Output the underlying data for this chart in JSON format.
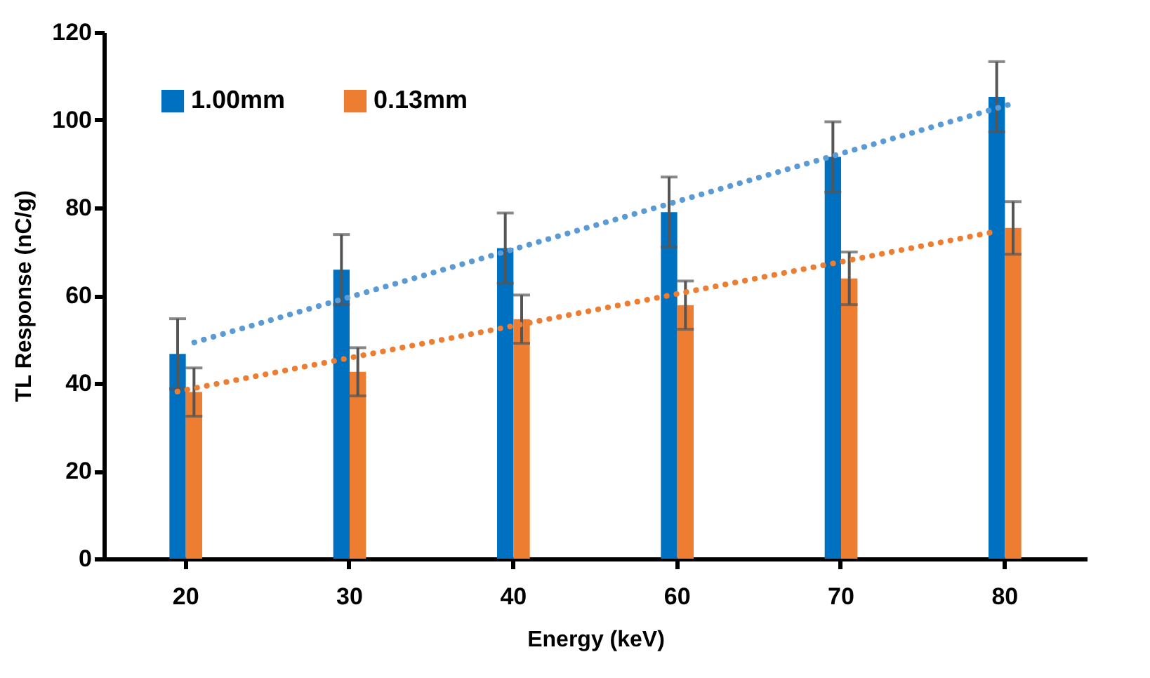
{
  "chart_data": {
    "type": "bar",
    "xlabel": "Energy (keV)",
    "ylabel": "TL Response (nC/g)",
    "categories": [
      "20",
      "30",
      "40",
      "60",
      "70",
      "80"
    ],
    "series": [
      {
        "name": "1.00mm",
        "color": "#0070c0",
        "values": [
          46.7,
          65.9,
          70.8,
          79,
          91.6,
          105.3
        ],
        "errors": [
          8,
          8,
          8,
          8,
          8,
          8
        ]
      },
      {
        "name": "0.13mm",
        "color": "#ed7d31",
        "values": [
          38,
          42.6,
          54.6,
          57.8,
          63.9,
          75.4
        ],
        "errors": [
          5.5,
          5.5,
          5.5,
          5.5,
          6,
          6
        ]
      },
      {
        "type": "line",
        "color": "#5b9bd5",
        "line_style": "dotted",
        "x": [
          "20",
          "30",
          "40",
          "60",
          "70",
          "80"
        ],
        "values": [
          49.3,
          60.2,
          71.1,
          82,
          92.9,
          103.8
        ]
      },
      {
        "type": "line",
        "color": "#ed7d31",
        "line_style": "dotted",
        "x": [
          "20",
          "30",
          "40",
          "60",
          "70",
          "80"
        ],
        "values": [
          38.1,
          45.4,
          52.7,
          60,
          67.3,
          74.6
        ]
      }
    ],
    "ylim": [
      0,
      120
    ],
    "yticks": [
      0,
      20,
      40,
      60,
      80,
      100,
      120
    ],
    "grid": false,
    "legend": "top left"
  }
}
